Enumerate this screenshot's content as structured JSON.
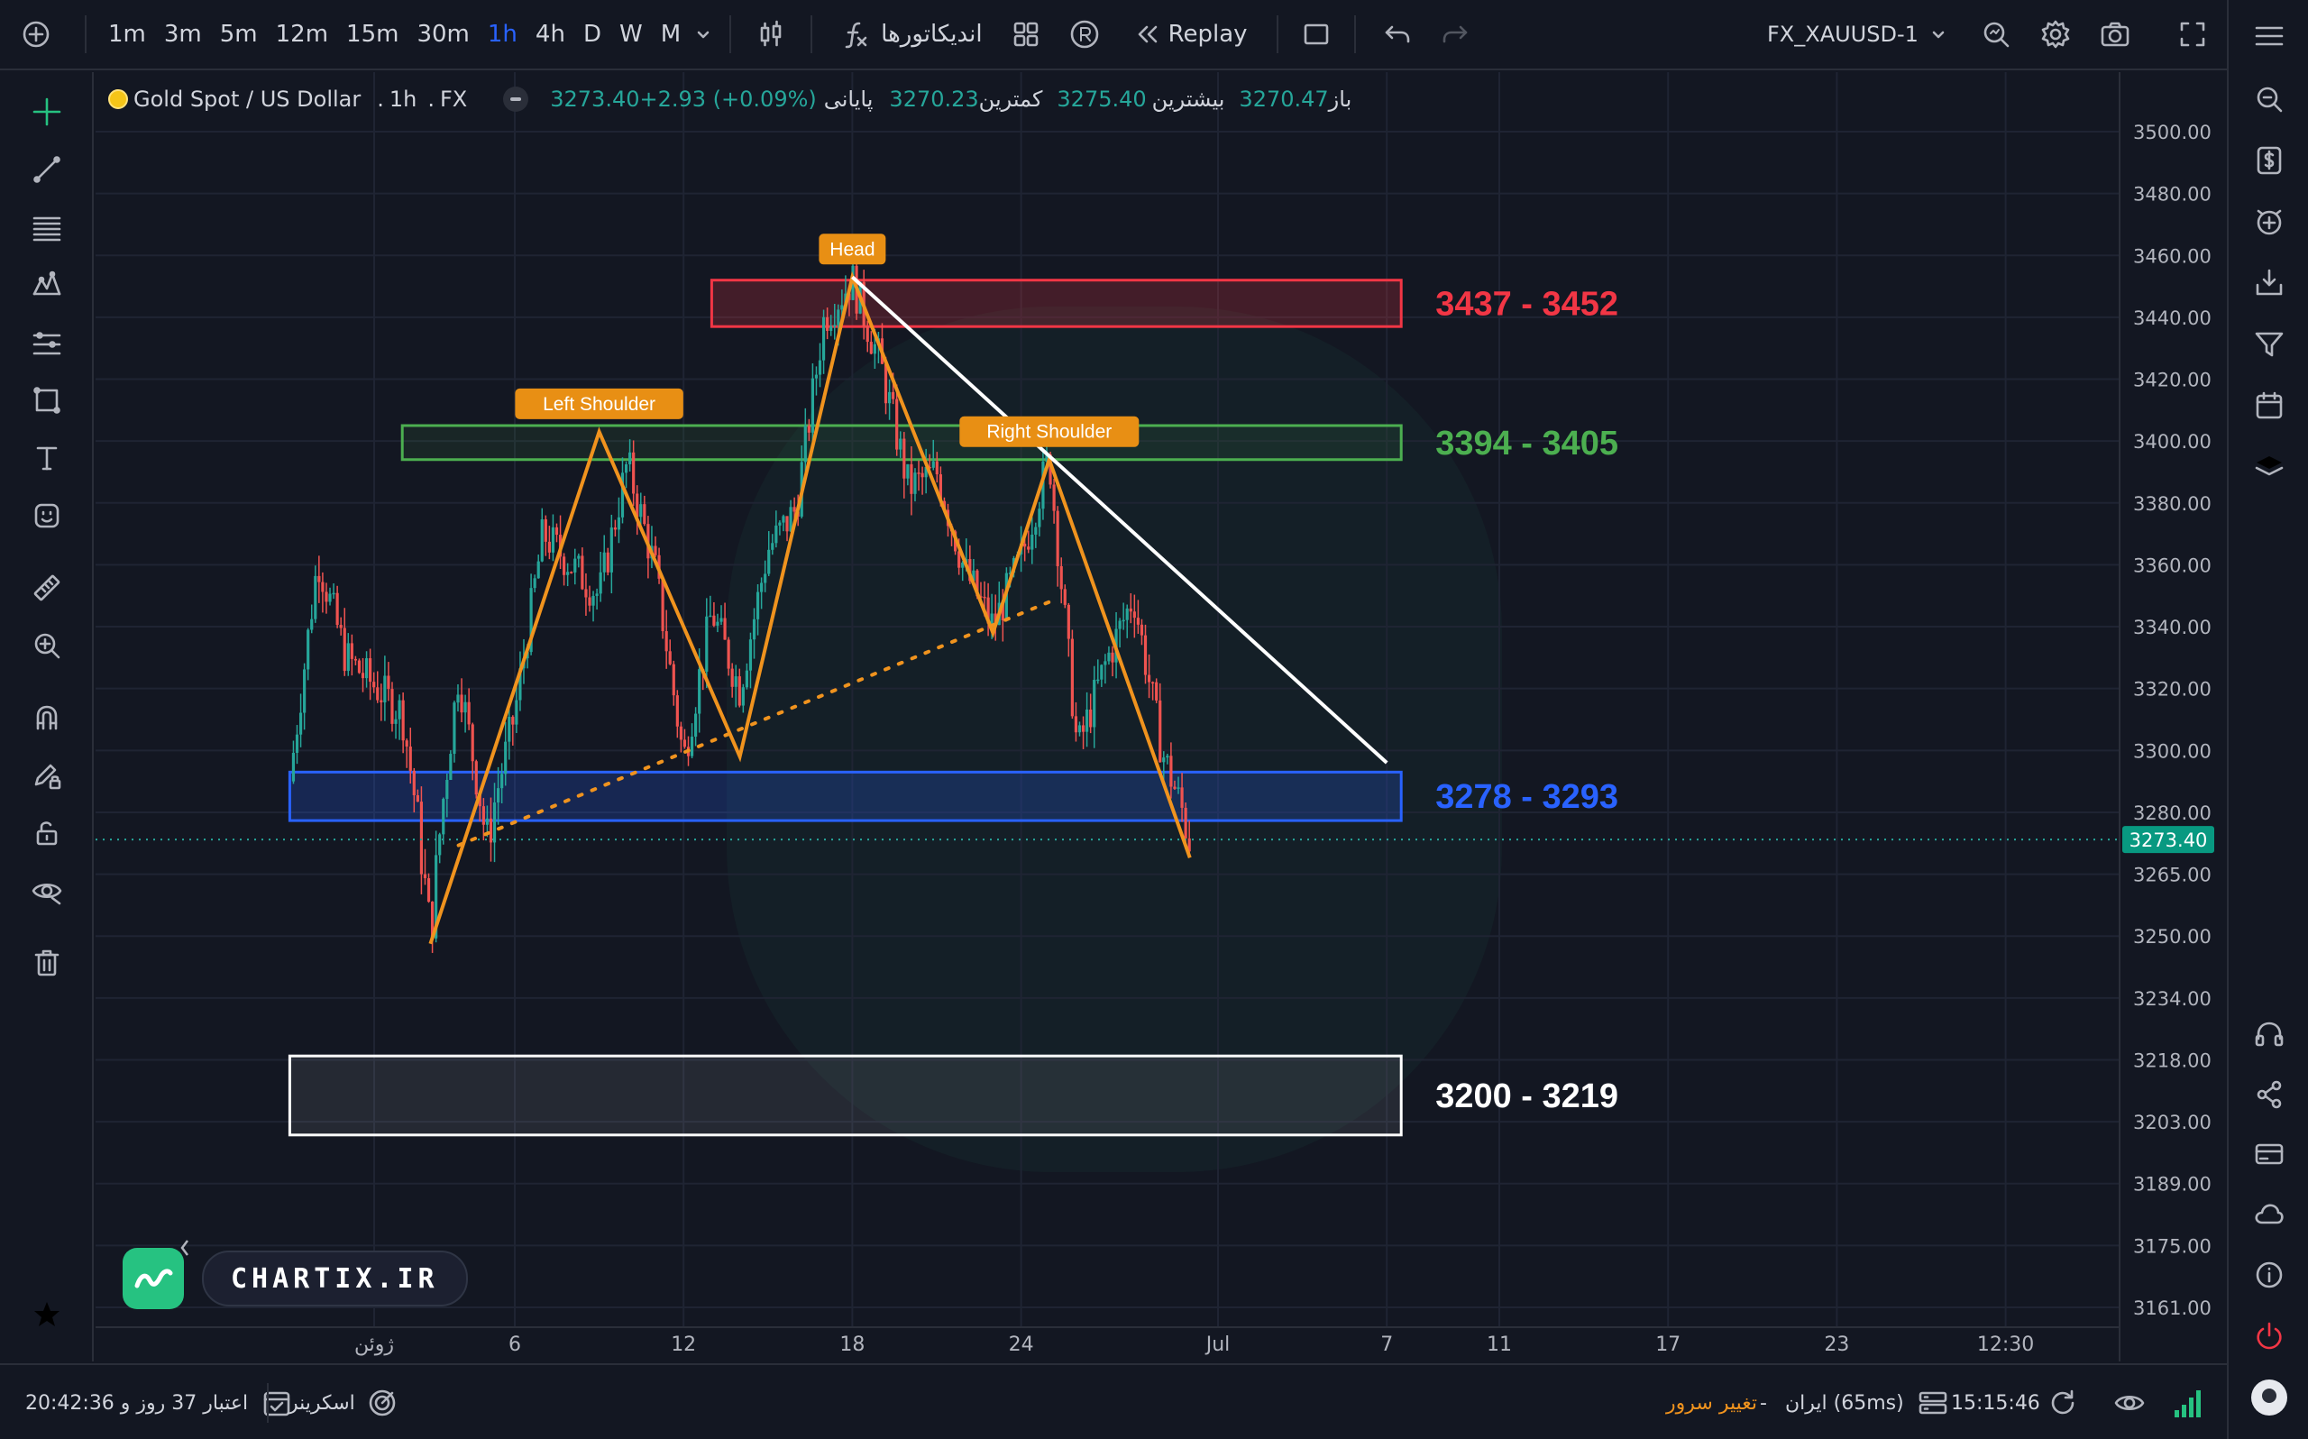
{
  "toolbar": {
    "timeframes": [
      "1m",
      "3m",
      "5m",
      "12m",
      "15m",
      "30m",
      "1h",
      "4h",
      "D",
      "W",
      "M"
    ],
    "active_timeframe": "1h",
    "indicators_label": "اندیکاتورها",
    "replay_label": "Replay",
    "symbol_selector": "FX_XAUUSD-1"
  },
  "legend": {
    "symbol": "Gold Spot / US Dollar",
    "interval": "1h",
    "exchange": "FX",
    "open_label": "باز",
    "open": "3270.47",
    "high_label": "بیشترین",
    "high": "3275.40",
    "low_label": "کمترین",
    "low": "3270.23",
    "close_label": "پایانی",
    "close_change": "3273.40+2.93 (+0.09%)"
  },
  "price_axis": {
    "ticks": [
      "3500.00",
      "3480.00",
      "3460.00",
      "3440.00",
      "3420.00",
      "3400.00",
      "3380.00",
      "3360.00",
      "3340.00",
      "3320.00",
      "3300.00",
      "3280.00",
      "3265.00",
      "3250.00",
      "3234.00",
      "3218.00",
      "3203.00",
      "3189.00",
      "3175.00",
      "3161.00"
    ],
    "current_price": "3273.40"
  },
  "time_axis": {
    "ticks": [
      "ژوئن",
      "6",
      "12",
      "18",
      "24",
      "Jul",
      "7",
      "11",
      "17",
      "23",
      "12:30"
    ]
  },
  "colors": {
    "up": "#26a69a",
    "down": "#ef5350",
    "pattern": "#f0931e",
    "trendline": "#ffffff",
    "zone_red": "#f23645",
    "zone_green": "#4caf50",
    "zone_blue": "#2962ff",
    "zone_white": "#ffffff"
  },
  "chart_data": {
    "type": "candlestick",
    "symbol": "Gold Spot / US Dollar",
    "interval": "1h",
    "price_path": [
      {
        "date": "May 29",
        "price": 3290
      },
      {
        "date": "May 30",
        "price": 3362
      },
      {
        "date": "May 31",
        "price": 3330
      },
      {
        "date": "Jun 2",
        "price": 3312
      },
      {
        "date": "Jun 3",
        "price": 3250
      },
      {
        "date": "Jun 4",
        "price": 3325
      },
      {
        "date": "Jun 5",
        "price": 3272
      },
      {
        "date": "Jun 6",
        "price": 3312
      },
      {
        "date": "Jun 7",
        "price": 3370
      },
      {
        "date": "Jun 9",
        "price": 3350
      },
      {
        "date": "Jun 10",
        "price": 3393
      },
      {
        "date": "Jun 11",
        "price": 3358
      },
      {
        "date": "Jun 12",
        "price": 3297
      },
      {
        "date": "Jun 13",
        "price": 3345
      },
      {
        "date": "Jun 14",
        "price": 3320
      },
      {
        "date": "Jun 15",
        "price": 3365
      },
      {
        "date": "Jun 16",
        "price": 3378
      },
      {
        "date": "Jun 17",
        "price": 3440
      },
      {
        "date": "Jun 18",
        "price": 3452
      },
      {
        "date": "Jun 19",
        "price": 3425
      },
      {
        "date": "Jun 20",
        "price": 3385
      },
      {
        "date": "Jun 21",
        "price": 3390
      },
      {
        "date": "Jun 22",
        "price": 3358
      },
      {
        "date": "Jun 23",
        "price": 3340
      },
      {
        "date": "Jun 24",
        "price": 3362
      },
      {
        "date": "Jun 25",
        "price": 3395
      },
      {
        "date": "Jun 26",
        "price": 3300
      },
      {
        "date": "Jun 27",
        "price": 3328
      },
      {
        "date": "Jun 28",
        "price": 3350
      },
      {
        "date": "Jun 29",
        "price": 3300
      },
      {
        "date": "Jun 30",
        "price": 3273.4
      }
    ],
    "pattern_points": [
      {
        "date": "Jun 3",
        "price": 3248
      },
      {
        "date": "Jun 9",
        "price": 3403
      },
      {
        "date": "Jun 14",
        "price": 3298
      },
      {
        "date": "Jun 18",
        "price": 3453
      },
      {
        "date": "Jun 23",
        "price": 3338
      },
      {
        "date": "Jun 25",
        "price": 3394
      },
      {
        "date": "Jun 30",
        "price": 3269
      }
    ],
    "neckline": [
      {
        "date": "Jun 4",
        "price": 3272
      },
      {
        "date": "Jun 25",
        "price": 3348
      }
    ],
    "trendline": [
      {
        "date": "Jun 18",
        "price": 3453
      },
      {
        "date": "Jul 7",
        "price": 3296
      }
    ],
    "annotations": [
      {
        "text": "Left Shoulder",
        "date": "Jun 9",
        "price": 3403
      },
      {
        "text": "Head",
        "date": "Jun 18",
        "price": 3453
      },
      {
        "text": "Right Shoulder",
        "date": "Jun 25",
        "price": 3394
      }
    ],
    "zones": [
      {
        "label": "3437 - 3452",
        "low": 3437,
        "high": 3452,
        "color": "red",
        "from": "Jun 13",
        "to": "Jul 7"
      },
      {
        "label": "3394 - 3405",
        "low": 3394,
        "high": 3405,
        "color": "green",
        "from": "Jun 2",
        "to": "Jul 7"
      },
      {
        "label": "3278 - 3293",
        "low": 3278,
        "high": 3293,
        "color": "blue",
        "from": "May 29",
        "to": "Jul 7"
      },
      {
        "label": "3200 - 3219",
        "low": 3200,
        "high": 3219,
        "color": "white",
        "from": "May 29",
        "to": "Jul 7"
      }
    ],
    "current_price": 3273.4
  },
  "branding": {
    "site": "CHARTIX.IR"
  },
  "bottombar": {
    "clock_right": "15:15:46",
    "region": "ایران (65ms)",
    "dash": "-",
    "change_server": "تغییر سرور",
    "screener": "اسکرینر",
    "credit": "اعتبار 37 روز و 20:42:36"
  },
  "icons": [
    "plus-circle-icon",
    "candles-icon",
    "function-icon",
    "layout-grid-icon",
    "replay-icon",
    "undo-icon",
    "redo-icon",
    "search-icon",
    "gear-icon",
    "camera-icon",
    "fullscreen-icon",
    "menu-icon"
  ]
}
